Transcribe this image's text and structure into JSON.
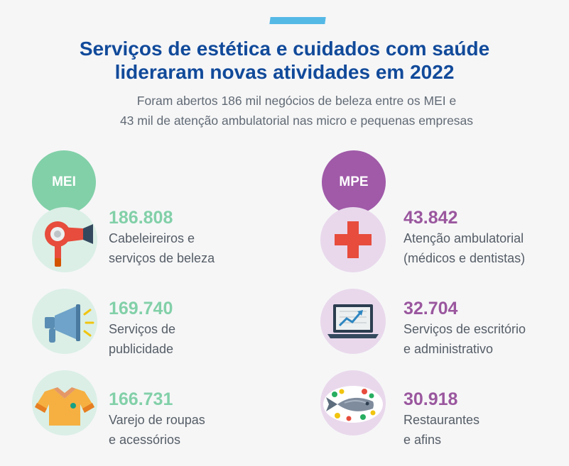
{
  "header": {
    "title_line1": "Serviços de estética e cuidados com saúde",
    "title_line2": "lideraram novas atividades em 2022",
    "subtitle_line1": "Foram abertos 186 mil negócios de beleza entre os MEI e",
    "subtitle_line2": "43 mil de atenção ambulatorial nas micro e pequenas empresas"
  },
  "colors": {
    "accent_bar": "#55b9e6",
    "title": "#114a9a",
    "mei": "#82d0a8",
    "mpe": "#a05aa8"
  },
  "mei": {
    "tag": "MEI",
    "items": [
      {
        "value": "186.808",
        "label": "Cabeleireiros e\nserviços de beleza",
        "icon": "hair-dryer-icon"
      },
      {
        "value": "169.740",
        "label": "Serviços de\npublicidade",
        "icon": "megaphone-icon"
      },
      {
        "value": "166.731",
        "label": "Varejo de roupas\ne acessórios",
        "icon": "shirt-icon"
      }
    ]
  },
  "mpe": {
    "tag": "MPE",
    "items": [
      {
        "value": "43.842",
        "label": "Atenção ambulatorial\n(médicos e dentistas)",
        "icon": "medical-cross-icon"
      },
      {
        "value": "32.704",
        "label": "Serviços de escritório\ne administrativo",
        "icon": "laptop-chart-icon"
      },
      {
        "value": "30.918",
        "label": "Restaurantes\ne afins",
        "icon": "fish-plate-icon"
      }
    ]
  }
}
